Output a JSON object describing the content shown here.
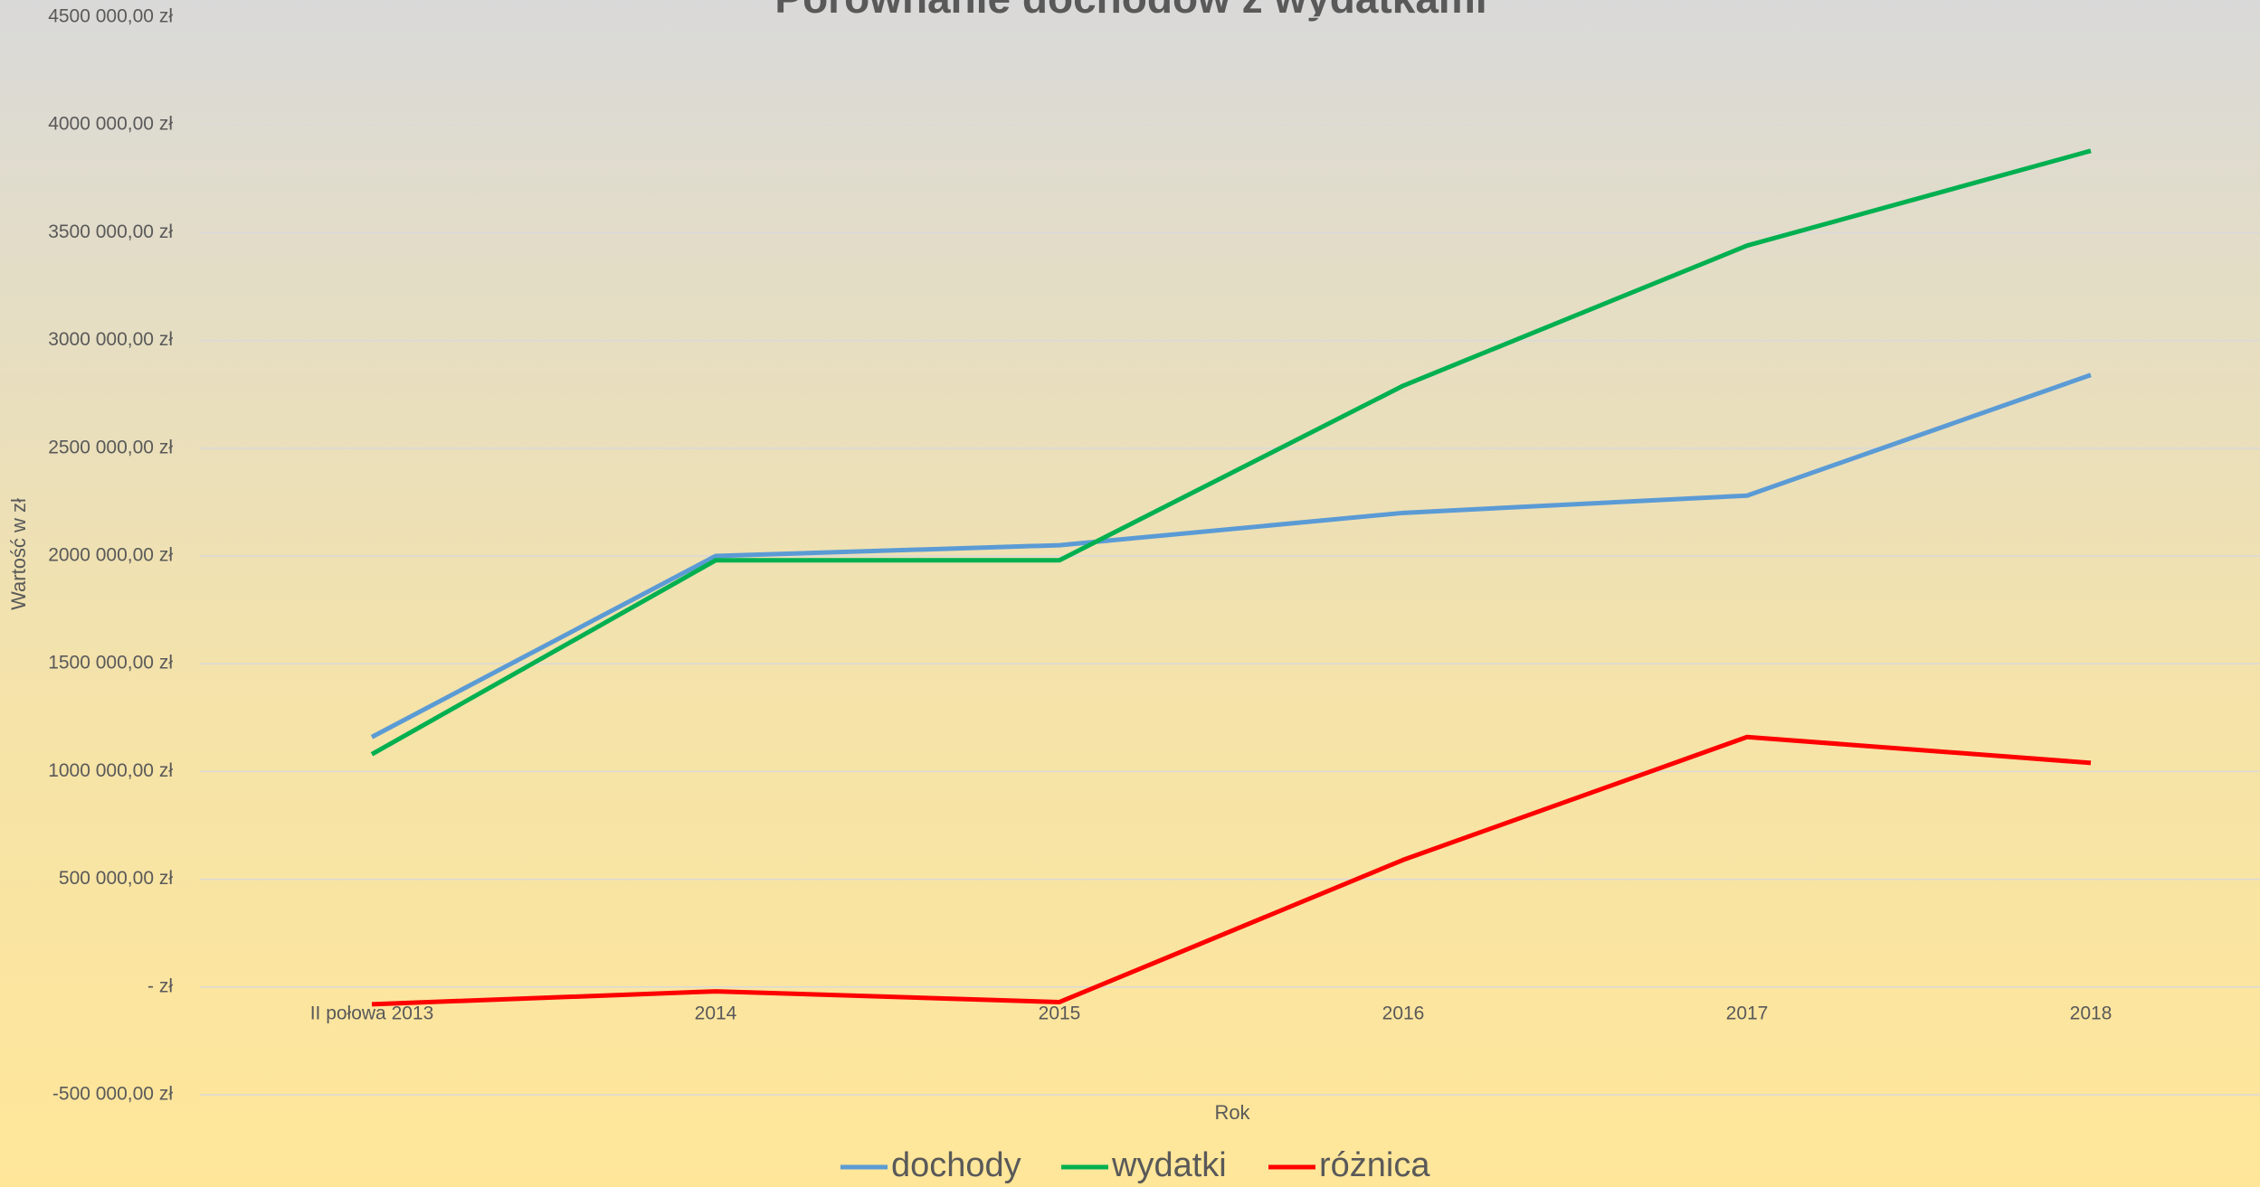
{
  "chart_data": {
    "type": "line",
    "title": "Porównanie dochodów z wydatkami",
    "x_label": "Rok",
    "y_label": "Wartość w zł",
    "categories": [
      "II połowa 2013",
      "2014",
      "2015",
      "2016",
      "2017",
      "2018"
    ],
    "series": [
      {
        "name": "dochody",
        "color": "#5b9bd5",
        "values": [
          1160000,
          2000000,
          2050000,
          2200000,
          2280000,
          2840000
        ]
      },
      {
        "name": "wydatki",
        "color": "#00b050",
        "values": [
          1080000,
          1980000,
          1980000,
          2790000,
          3440000,
          3880000
        ]
      },
      {
        "name": "różnica",
        "color": "#ff0000",
        "values": [
          -80000,
          -20000,
          -70000,
          590000,
          1160000,
          1040000
        ]
      }
    ],
    "ylim": [
      -500000,
      4500000
    ],
    "yticks": [
      {
        "value": -500000,
        "label": "-500 000,00 zł"
      },
      {
        "value": 0,
        "label": "-  zł"
      },
      {
        "value": 500000,
        "label": "500 000,00 zł"
      },
      {
        "value": 1000000,
        "label": "1000 000,00 zł"
      },
      {
        "value": 1500000,
        "label": "1500 000,00 zł"
      },
      {
        "value": 2000000,
        "label": "2000 000,00 zł"
      },
      {
        "value": 2500000,
        "label": "2500 000,00 zł"
      },
      {
        "value": 3000000,
        "label": "3000 000,00 zł"
      },
      {
        "value": 3500000,
        "label": "3500 000,00 zł"
      },
      {
        "value": 4000000,
        "label": "4000 000,00 zł"
      },
      {
        "value": 4500000,
        "label": "4500 000,00 zł"
      }
    ],
    "grid": true,
    "legend": "bottom"
  }
}
